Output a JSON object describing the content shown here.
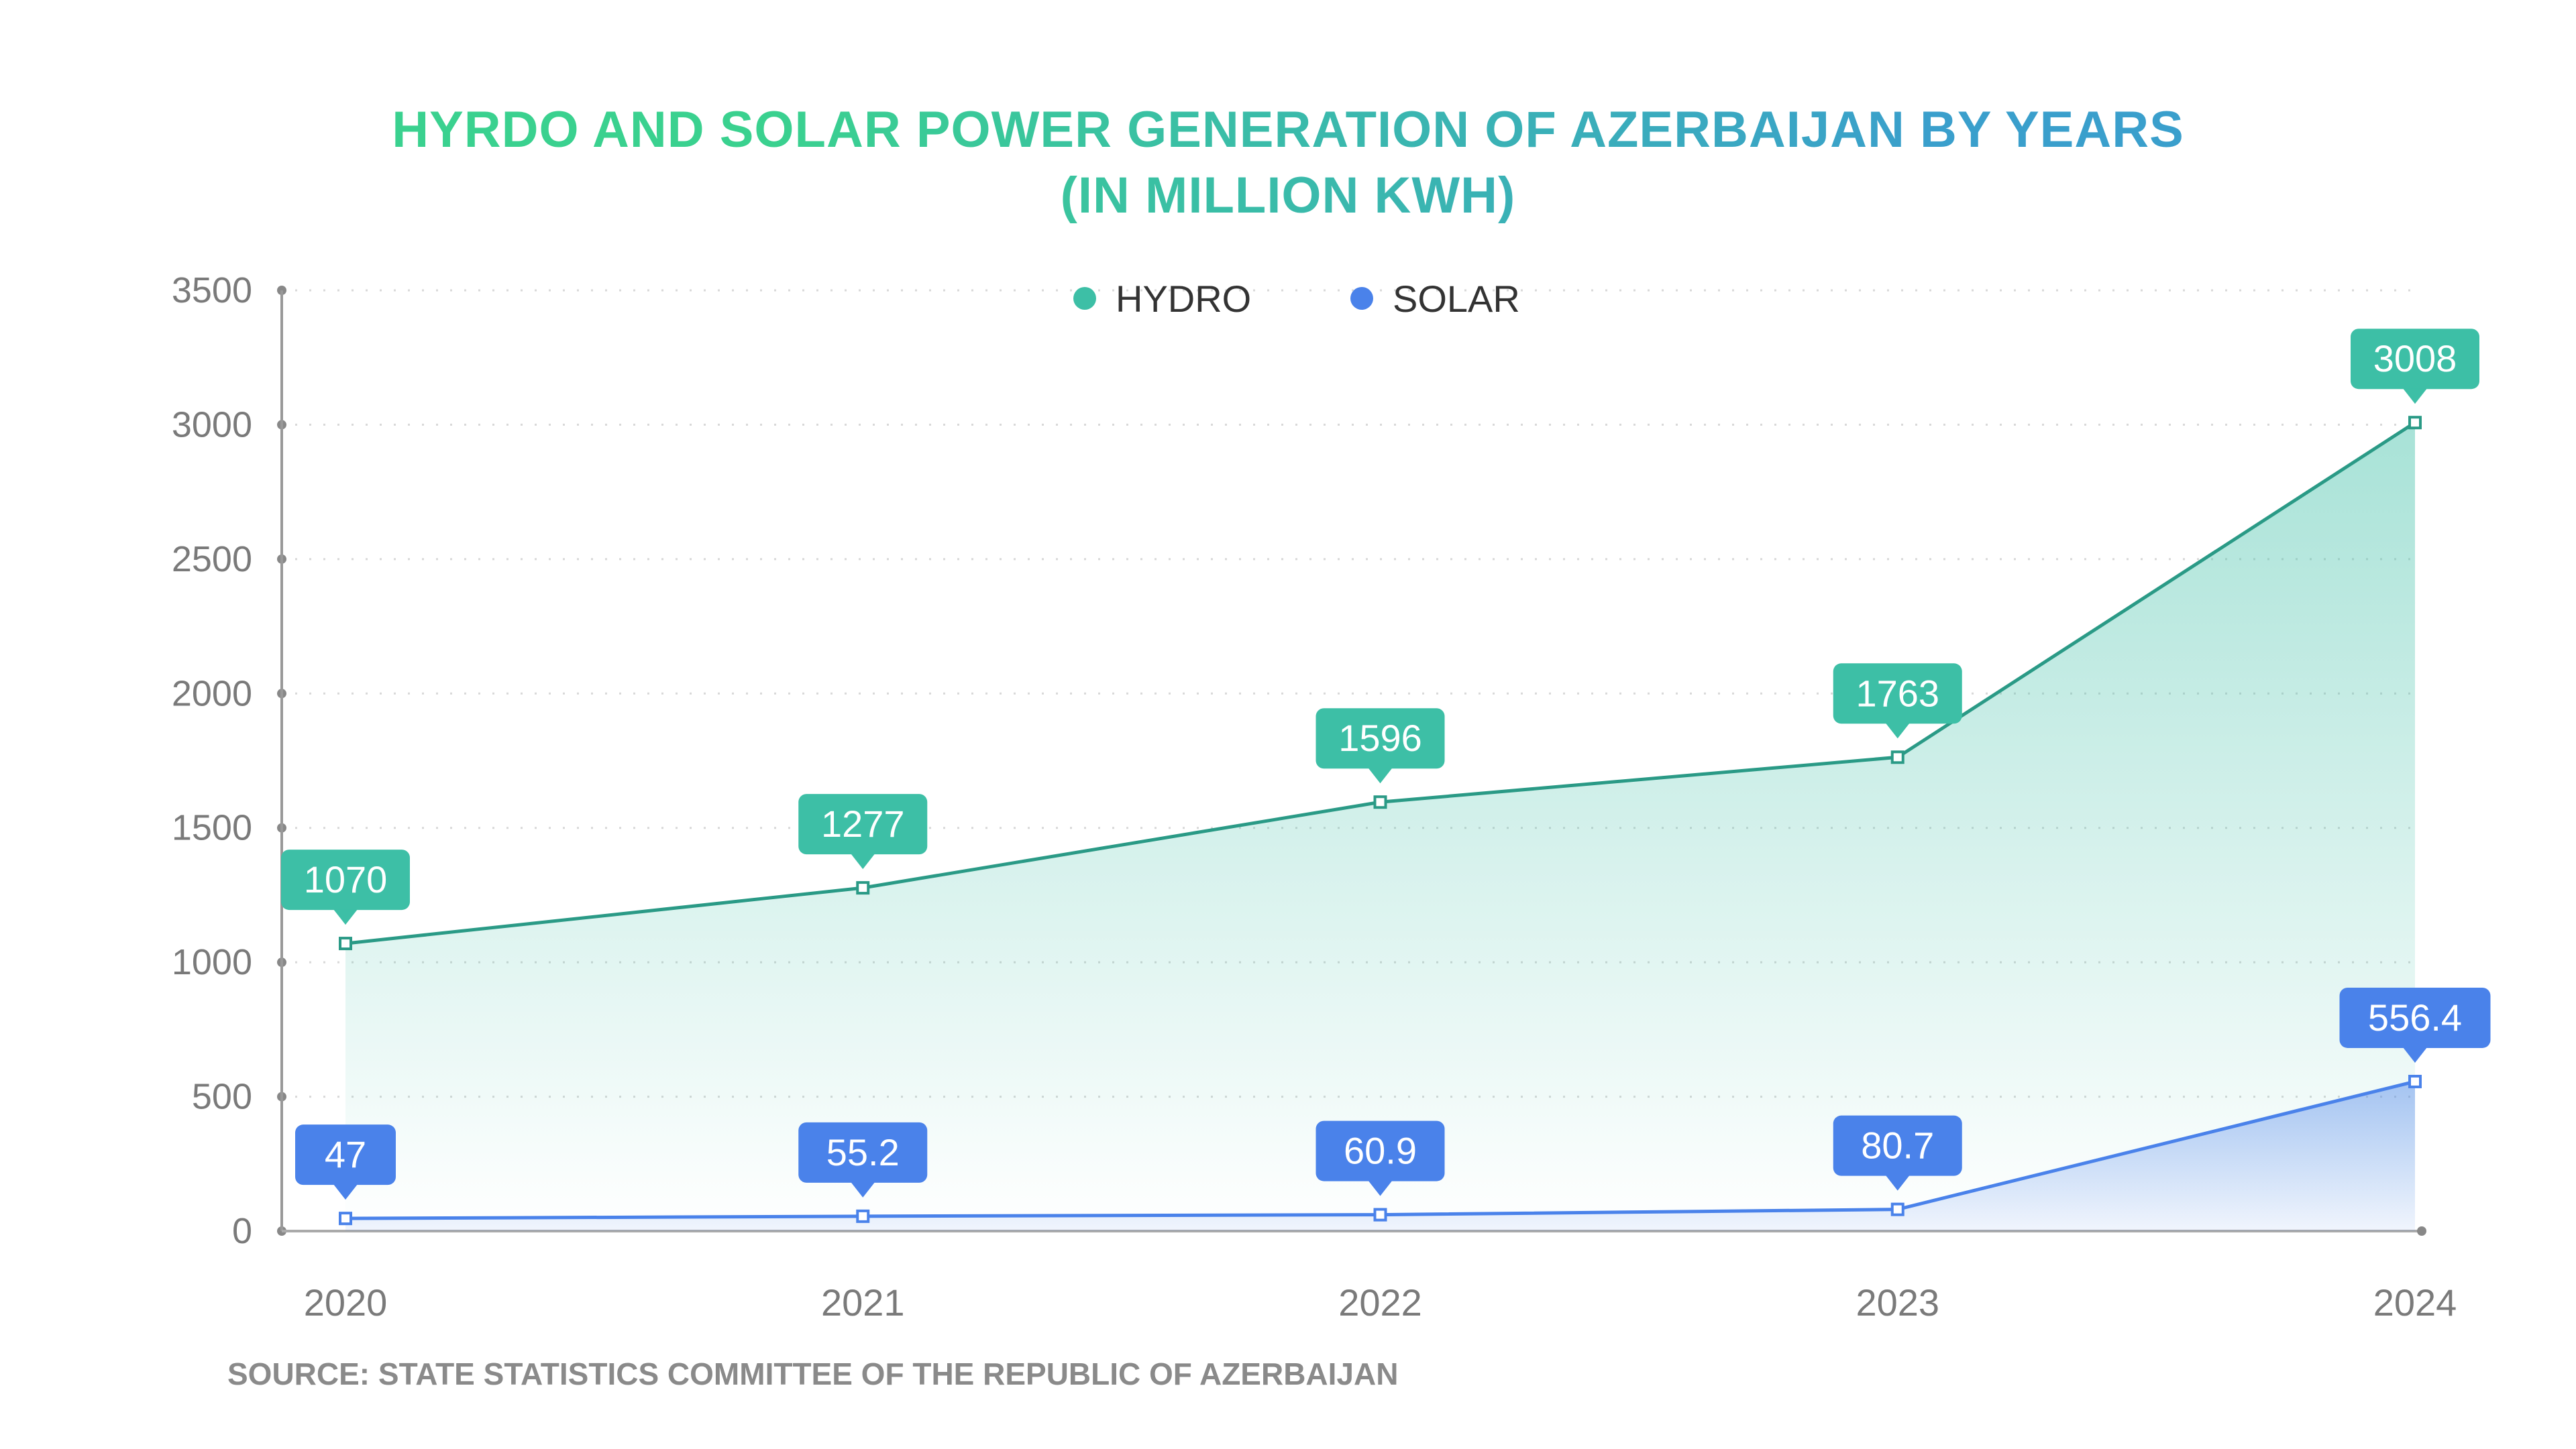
{
  "chart_data": {
    "type": "area",
    "title": "HYRDO AND SOLAR POWER GENERATION OF AZERBAIJAN BY YEARS",
    "subtitle": "(IN MILLION KWH)",
    "categories": [
      "2020",
      "2021",
      "2022",
      "2023",
      "2024"
    ],
    "series": [
      {
        "name": "HYDRO",
        "values": [
          1070,
          1277,
          1596,
          1763,
          3008
        ],
        "labels": [
          "1070",
          "1277",
          "1596",
          "1763",
          "3008"
        ],
        "color": "#3dbfa6",
        "line_color": "#2a9a86"
      },
      {
        "name": "SOLAR",
        "values": [
          47,
          55.2,
          60.9,
          80.7,
          556.4
        ],
        "labels": [
          "47",
          "55.2",
          "60.9",
          "80.7",
          "556.4"
        ],
        "color": "#4a82ea",
        "line_color": "#4a82ea"
      }
    ],
    "ylim": [
      0,
      3500
    ],
    "yticks": [
      "0",
      "500",
      "1000",
      "1500",
      "2000",
      "2500",
      "3000",
      "3500"
    ],
    "grid": "horizontal dotted",
    "legend": "top-center"
  },
  "source": "SOURCE: STATE STATISTICS COMMITTEE OF THE REPUBLIC OF AZERBAIJAN"
}
